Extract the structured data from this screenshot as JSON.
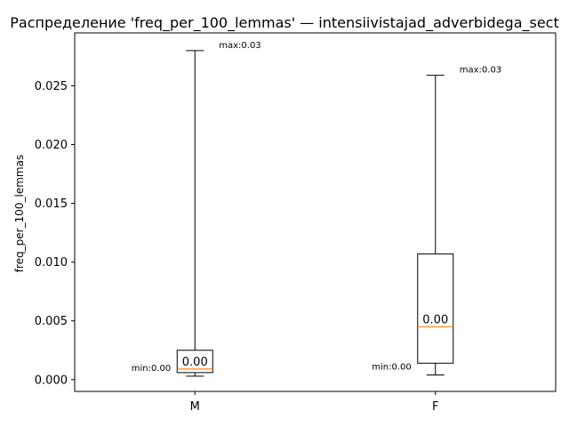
{
  "chart_data": {
    "type": "box",
    "title": "Распределение 'freq_per_100_lemmas' — intensiivistajad_adverbidega_sect",
    "ylabel": "freq_per_100_lemmas",
    "xlabel": "",
    "ylim": [
      -0.001,
      0.0295
    ],
    "yticks": [
      "0.000",
      "0.005",
      "0.010",
      "0.015",
      "0.020",
      "0.025"
    ],
    "ytick_values": [
      0.0,
      0.005,
      0.01,
      0.015,
      0.02,
      0.025
    ],
    "grid": false,
    "categories": [
      "M",
      "F"
    ],
    "boxes": [
      {
        "category": "M",
        "whisker_low": 0.0003,
        "q1": 0.0006,
        "median": 0.0009,
        "q3": 0.0025,
        "whisker_high": 0.028,
        "median_label": "0.00",
        "min_label": "min:0.00",
        "max_label": "max:0.03"
      },
      {
        "category": "F",
        "whisker_low": 0.0004,
        "q1": 0.0014,
        "median": 0.0045,
        "q3": 0.0107,
        "whisker_high": 0.0259,
        "median_label": "0.00",
        "min_label": "min:0.00",
        "max_label": "max:0.03"
      }
    ],
    "colors": {
      "box": "#000000",
      "median": "#ff7f0e"
    }
  }
}
